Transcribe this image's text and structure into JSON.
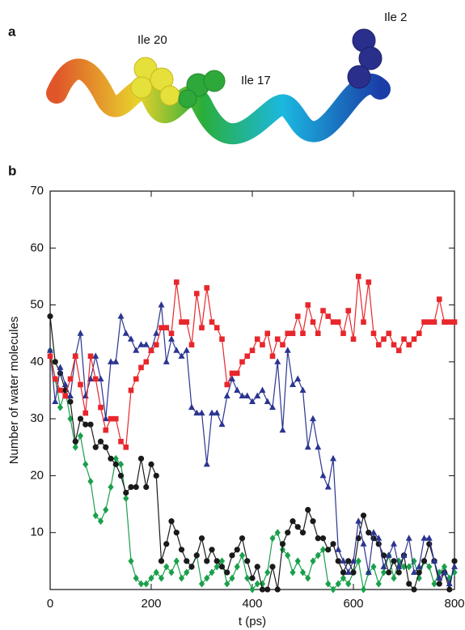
{
  "panel_a": {
    "label": "a",
    "annotations": [
      "Ile 20",
      "Ile 17",
      "Ile 2"
    ]
  },
  "chart_data": {
    "type": "line",
    "panel_label": "b",
    "xlabel": "t (ps)",
    "ylabel": "Number of water molecules",
    "xlim": [
      0,
      800
    ],
    "ylim": [
      0,
      70
    ],
    "xticks": [
      0,
      200,
      400,
      600,
      800
    ],
    "yticks": [
      10,
      20,
      30,
      40,
      50,
      60,
      70
    ],
    "x": [
      0,
      10,
      20,
      30,
      40,
      50,
      60,
      70,
      80,
      90,
      100,
      110,
      120,
      130,
      140,
      150,
      160,
      170,
      180,
      190,
      200,
      210,
      220,
      230,
      240,
      250,
      260,
      270,
      280,
      290,
      300,
      310,
      320,
      330,
      340,
      350,
      360,
      370,
      380,
      390,
      400,
      410,
      420,
      430,
      440,
      450,
      460,
      470,
      480,
      490,
      500,
      510,
      520,
      530,
      540,
      550,
      560,
      570,
      580,
      590,
      600,
      610,
      620,
      630,
      640,
      650,
      660,
      670,
      680,
      690,
      700,
      710,
      720,
      730,
      740,
      750,
      760,
      770,
      780,
      790,
      800
    ],
    "series": [
      {
        "color": "#1aa04b",
        "marker": "diamond",
        "values": [
          42,
          37,
          32,
          35,
          30,
          25,
          27,
          22,
          19,
          13,
          12,
          14,
          18,
          23,
          22,
          16,
          5,
          2,
          1,
          1,
          2,
          3,
          2,
          4,
          3,
          5,
          2,
          3,
          4,
          6,
          1,
          2,
          3,
          4,
          5,
          1,
          2,
          4,
          6,
          2,
          0,
          1,
          1,
          3,
          9,
          10,
          7,
          6,
          3,
          5,
          3,
          2,
          5,
          6,
          7,
          1,
          0,
          1,
          2,
          1,
          3,
          5,
          0,
          3,
          4,
          1,
          3,
          6,
          2,
          5,
          4,
          4,
          5,
          2,
          5,
          4,
          1,
          3,
          4,
          2,
          3
        ]
      },
      {
        "color": "#1a1a1a",
        "marker": "circle",
        "values": [
          48,
          40,
          38,
          35,
          33,
          26,
          30,
          29,
          29,
          25,
          26,
          25,
          23,
          22,
          20,
          17,
          18,
          18,
          23,
          18,
          22,
          20,
          5,
          8,
          12,
          10,
          7,
          5,
          4,
          6,
          9,
          5,
          7,
          5,
          4,
          3,
          6,
          7,
          9,
          5,
          2,
          4,
          0,
          0,
          4,
          0,
          8,
          10,
          12,
          11,
          10,
          14,
          12,
          9,
          9,
          7,
          8,
          5,
          3,
          5,
          3,
          9,
          13,
          10,
          9,
          8,
          6,
          3,
          5,
          3,
          6,
          1,
          0,
          3,
          5,
          8,
          5,
          1,
          3,
          0,
          5
        ]
      },
      {
        "color": "#2b3590",
        "marker": "triangle",
        "values": [
          42,
          33,
          39,
          36,
          34,
          41,
          45,
          34,
          37,
          41,
          37,
          30,
          40,
          40,
          48,
          45,
          44,
          42,
          43,
          43,
          42,
          45,
          50,
          40,
          44,
          42,
          41,
          42,
          32,
          31,
          31,
          22,
          31,
          31,
          29,
          34,
          37,
          35,
          34,
          34,
          33,
          34,
          35,
          33,
          32,
          40,
          28,
          42,
          36,
          37,
          35,
          25,
          30,
          25,
          20,
          18,
          23,
          7,
          5,
          3,
          5,
          12,
          8,
          3,
          10,
          9,
          4,
          6,
          8,
          4,
          6,
          9,
          3,
          4,
          9,
          9,
          5,
          2,
          3,
          1,
          4
        ]
      },
      {
        "color": "#e8262b",
        "marker": "square",
        "values": [
          41,
          37,
          35,
          34,
          37,
          41,
          36,
          31,
          41,
          37,
          32,
          28,
          30,
          30,
          26,
          25,
          35,
          37,
          39,
          40,
          42,
          43,
          46,
          46,
          45,
          54,
          47,
          47,
          43,
          52,
          46,
          53,
          47,
          46,
          44,
          36,
          38,
          38,
          40,
          41,
          42,
          44,
          43,
          45,
          41,
          44,
          43,
          45,
          45,
          48,
          45,
          50,
          47,
          45,
          49,
          48,
          47,
          47,
          45,
          49,
          44,
          55,
          47,
          54,
          45,
          43,
          44,
          45,
          43,
          42,
          44,
          43,
          44,
          45,
          47,
          47,
          47,
          51,
          47,
          47,
          47
        ]
      }
    ]
  }
}
